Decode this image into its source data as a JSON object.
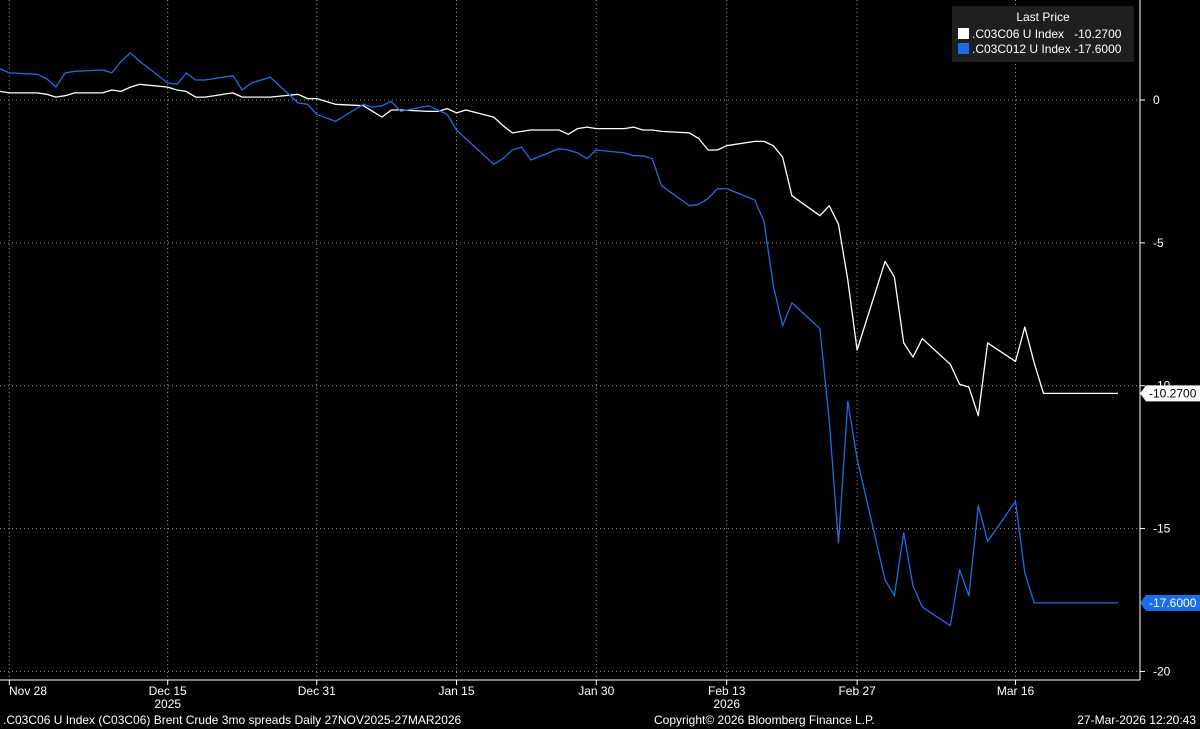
{
  "chart_data": {
    "type": "line",
    "title": ".C03C06 U Index (C03C06) Brent Crude 3mo spreads Daily 27NOV2025-27MAR2026",
    "y_ticks": [
      0,
      -5,
      -10,
      -15,
      -20
    ],
    "ylim": [
      -20.3,
      3.5
    ],
    "y_side": "right",
    "grid": true,
    "x_start": "2025-11-27",
    "x_end": "2026-03-27",
    "x_ticks": [
      {
        "date": "2025-11-28",
        "label": "Nov 28",
        "sub": ""
      },
      {
        "date": "2025-12-15",
        "label": "Dec 15",
        "sub": "2025"
      },
      {
        "date": "2025-12-31",
        "label": "Dec 31",
        "sub": ""
      },
      {
        "date": "2026-01-15",
        "label": "Jan 15",
        "sub": ""
      },
      {
        "date": "2026-01-30",
        "label": "Jan 30",
        "sub": ""
      },
      {
        "date": "2026-02-13",
        "label": "Feb 13",
        "sub": "2026"
      },
      {
        "date": "2026-02-27",
        "label": "Feb 27",
        "sub": ""
      },
      {
        "date": "2026-03-16",
        "label": "Mar 16",
        "sub": ""
      }
    ],
    "legend": {
      "title": "Last Price",
      "placement": "top-right",
      "entries": [
        {
          "name": ".C03C06 U Index",
          "value": "-10.2700",
          "color": "#ffffff"
        },
        {
          "name": ".C03C012 U Index",
          "value": "-17.6000",
          "color": "#1a6fe8"
        }
      ]
    },
    "series": [
      {
        "name": ".C03C06 U Index",
        "color": "#ffffff",
        "last_label": "-10.2700",
        "x": [
          "2025-11-27",
          "2025-11-28",
          "2025-12-01",
          "2025-12-02",
          "2025-12-03",
          "2025-12-04",
          "2025-12-05",
          "2025-12-08",
          "2025-12-09",
          "2025-12-10",
          "2025-12-11",
          "2025-12-12",
          "2025-12-15",
          "2025-12-16",
          "2025-12-17",
          "2025-12-18",
          "2025-12-19",
          "2025-12-22",
          "2025-12-23",
          "2025-12-24",
          "2025-12-26",
          "2025-12-29",
          "2025-12-30",
          "2025-12-31",
          "2026-01-02",
          "2026-01-05",
          "2026-01-06",
          "2026-01-07",
          "2026-01-08",
          "2026-01-09",
          "2026-01-12",
          "2026-01-13",
          "2026-01-14",
          "2026-01-15",
          "2026-01-16",
          "2026-01-19",
          "2026-01-20",
          "2026-01-21",
          "2026-01-22",
          "2026-01-23",
          "2026-01-26",
          "2026-01-27",
          "2026-01-28",
          "2026-01-29",
          "2026-01-30",
          "2026-02-02",
          "2026-02-03",
          "2026-02-04",
          "2026-02-05",
          "2026-02-06",
          "2026-02-09",
          "2026-02-10",
          "2026-02-11",
          "2026-02-12",
          "2026-02-13",
          "2026-02-16",
          "2026-02-17",
          "2026-02-18",
          "2026-02-19",
          "2026-02-20",
          "2026-02-23",
          "2026-02-24",
          "2026-02-25",
          "2026-02-26",
          "2026-02-27",
          "2026-03-02",
          "2026-03-03",
          "2026-03-04",
          "2026-03-05",
          "2026-03-06",
          "2026-03-09",
          "2026-03-10",
          "2026-03-11",
          "2026-03-12",
          "2026-03-13",
          "2026-03-16",
          "2026-03-17",
          "2026-03-18",
          "2026-03-19",
          "2026-03-20",
          "2026-03-23",
          "2026-03-24",
          "2026-03-25",
          "2026-03-26",
          "2026-03-27"
        ],
        "y": [
          0.3,
          0.25,
          0.25,
          0.2,
          0.1,
          0.15,
          0.25,
          0.25,
          0.35,
          0.3,
          0.45,
          0.55,
          0.45,
          0.35,
          0.3,
          0.1,
          0.1,
          0.25,
          0.1,
          0.1,
          0.1,
          0.2,
          0.05,
          0.05,
          -0.15,
          -0.2,
          -0.4,
          -0.6,
          -0.35,
          -0.35,
          -0.4,
          -0.4,
          -0.3,
          -0.45,
          -0.35,
          -0.6,
          -0.9,
          -1.15,
          -1.1,
          -1.05,
          -1.05,
          -1.2,
          -1.0,
          -0.95,
          -1.0,
          -1.0,
          -0.95,
          -1.05,
          -1.05,
          -1.1,
          -1.15,
          -1.35,
          -1.75,
          -1.75,
          -1.6,
          -1.45,
          -1.45,
          -1.6,
          -2.0,
          -3.35,
          -4.05,
          -3.7,
          -4.35,
          -6.3,
          -8.75,
          -5.65,
          -6.2,
          -8.5,
          -9.0,
          -8.35,
          -9.25,
          -9.95,
          -10.05,
          -11.05,
          -8.5,
          -9.15,
          -7.95,
          -9.2,
          -10.27,
          -10.27,
          -10.27,
          -10.27,
          -10.27,
          -10.27,
          -10.27
        ]
      },
      {
        "name": ".C03C012 U Index",
        "color": "#1a6fe8",
        "last_label": "-17.6000",
        "x": [
          "2025-11-27",
          "2025-11-28",
          "2025-12-01",
          "2025-12-02",
          "2025-12-03",
          "2025-12-04",
          "2025-12-05",
          "2025-12-08",
          "2025-12-09",
          "2025-12-10",
          "2025-12-11",
          "2025-12-12",
          "2025-12-15",
          "2025-12-16",
          "2025-12-17",
          "2025-12-18",
          "2025-12-19",
          "2025-12-22",
          "2025-12-23",
          "2025-12-24",
          "2025-12-26",
          "2025-12-29",
          "2025-12-30",
          "2025-12-31",
          "2026-01-02",
          "2026-01-05",
          "2026-01-06",
          "2026-01-07",
          "2026-01-08",
          "2026-01-09",
          "2026-01-12",
          "2026-01-13",
          "2026-01-14",
          "2026-01-15",
          "2026-01-16",
          "2026-01-19",
          "2026-01-20",
          "2026-01-21",
          "2026-01-22",
          "2026-01-23",
          "2026-01-26",
          "2026-01-27",
          "2026-01-28",
          "2026-01-29",
          "2026-01-30",
          "2026-02-02",
          "2026-02-03",
          "2026-02-04",
          "2026-02-05",
          "2026-02-06",
          "2026-02-09",
          "2026-02-10",
          "2026-02-11",
          "2026-02-12",
          "2026-02-13",
          "2026-02-16",
          "2026-02-17",
          "2026-02-18",
          "2026-02-19",
          "2026-02-20",
          "2026-02-23",
          "2026-02-24",
          "2026-02-25",
          "2026-02-26",
          "2026-02-27",
          "2026-03-02",
          "2026-03-03",
          "2026-03-04",
          "2026-03-05",
          "2026-03-06",
          "2026-03-09",
          "2026-03-10",
          "2026-03-11",
          "2026-03-12",
          "2026-03-13",
          "2026-03-16",
          "2026-03-17",
          "2026-03-18",
          "2026-03-19",
          "2026-03-20",
          "2026-03-23",
          "2026-03-24",
          "2026-03-25",
          "2026-03-26",
          "2026-03-27"
        ],
        "y": [
          1.1,
          0.95,
          0.9,
          0.75,
          0.45,
          0.95,
          1.0,
          1.05,
          0.95,
          1.35,
          1.65,
          1.35,
          0.6,
          0.55,
          0.95,
          0.7,
          0.7,
          0.85,
          0.35,
          0.6,
          0.8,
          -0.1,
          -0.15,
          -0.5,
          -0.75,
          -0.15,
          -0.25,
          -0.2,
          -0.05,
          -0.4,
          -0.2,
          -0.35,
          -0.5,
          -1.05,
          -1.35,
          -2.25,
          -2.05,
          -1.75,
          -1.65,
          -2.1,
          -1.7,
          -1.75,
          -1.85,
          -2.05,
          -1.75,
          -1.85,
          -1.95,
          -1.95,
          -2.05,
          -3.0,
          -3.7,
          -3.65,
          -3.45,
          -3.1,
          -3.1,
          -3.5,
          -4.25,
          -6.5,
          -7.9,
          -7.1,
          -8.0,
          -11.2,
          -15.5,
          -10.55,
          -12.55,
          -16.8,
          -17.35,
          -15.15,
          -17.0,
          -17.75,
          -18.4,
          -16.45,
          -17.35,
          -14.2,
          -15.45,
          -14.05,
          -16.55,
          -17.6,
          -17.6,
          -17.6,
          -17.6,
          -17.6,
          -17.6,
          -17.6,
          -17.6
        ]
      }
    ]
  },
  "footer": {
    "left": ".C03C06 U Index (C03C06) Brent Crude 3mo spreads Daily 27NOV2025-27MAR2026",
    "center": "Copyright© 2026 Bloomberg Finance L.P.",
    "right": "27-Mar-2026 12:20:43"
  }
}
